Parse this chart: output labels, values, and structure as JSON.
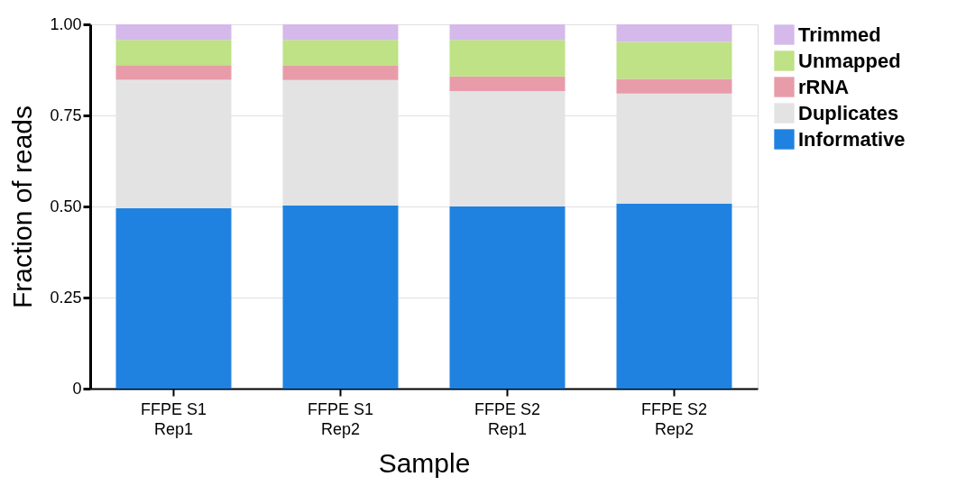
{
  "chart_data": {
    "type": "bar",
    "stacked": true,
    "xlabel": "Sample",
    "ylabel": "Fraction of reads",
    "categories": [
      "FFPE S1\nRep1",
      "FFPE S1\nRep2",
      "FFPE S2\nRep1",
      "FFPE S2\nRep2"
    ],
    "series": [
      {
        "name": "Informative",
        "color": "#1f82e0",
        "values": [
          0.495,
          0.503,
          0.5,
          0.508
        ]
      },
      {
        "name": "Duplicates",
        "color": "#e3e3e3",
        "values": [
          0.353,
          0.344,
          0.317,
          0.302
        ]
      },
      {
        "name": "rRNA",
        "color": "#e89ca9",
        "values": [
          0.04,
          0.039,
          0.04,
          0.04
        ]
      },
      {
        "name": "Unmapped",
        "color": "#bee285",
        "values": [
          0.069,
          0.071,
          0.1,
          0.102
        ]
      },
      {
        "name": "Trimmed",
        "color": "#d5b9ea",
        "values": [
          0.043,
          0.043,
          0.043,
          0.048
        ]
      }
    ],
    "ylim": [
      0,
      1
    ],
    "yticks": [
      0,
      0.25,
      {
        "value": 0.5,
        "label": "0.50"
      },
      0.75,
      {
        "value": 1,
        "label": "1.00"
      }
    ],
    "grid": "y",
    "legend": "top right"
  }
}
